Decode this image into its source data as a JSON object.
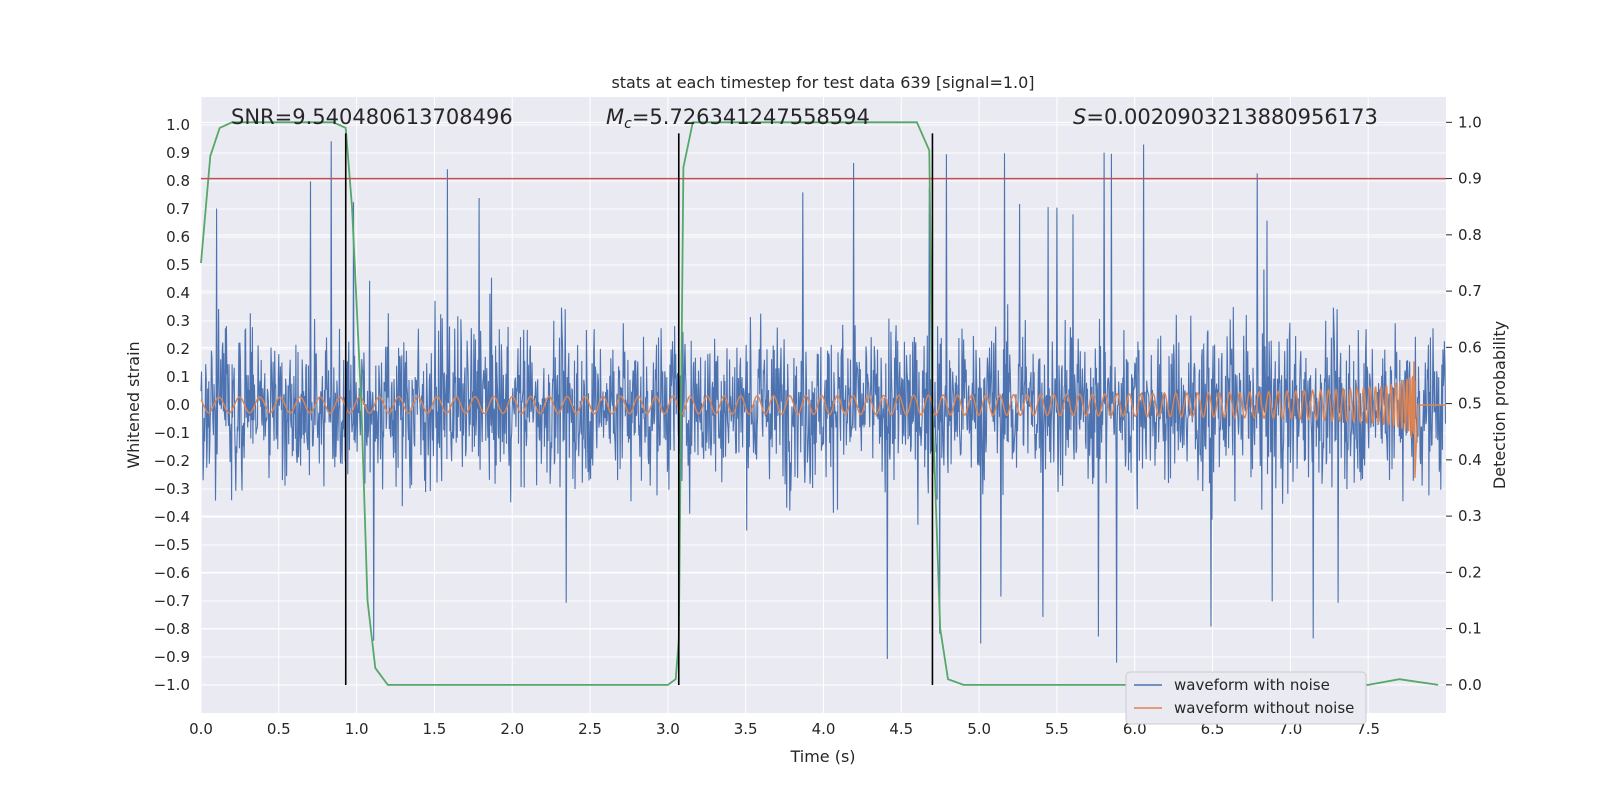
{
  "chart_data": {
    "type": "line",
    "title": "stats at each timestep for test data 639 [signal=1.0]",
    "xlabel": "Time (s)",
    "ylabel": "Whitened strain",
    "ylabel_right": "Detection probability",
    "xlim": [
      0.0,
      8.0
    ],
    "ylim": [
      -1.1,
      1.1
    ],
    "ylim_right": [
      -0.05,
      1.045
    ],
    "xticks": [
      "0.0",
      "0.5",
      "1.0",
      "1.5",
      "2.0",
      "2.5",
      "3.0",
      "3.5",
      "4.0",
      "4.5",
      "5.0",
      "5.5",
      "6.0",
      "6.5",
      "7.0",
      "7.5"
    ],
    "yticks": [
      "1.0",
      "0.9",
      "0.8",
      "0.7",
      "0.6",
      "0.5",
      "0.4",
      "0.3",
      "0.2",
      "0.1",
      "0.0",
      "−0.1",
      "−0.2",
      "−0.3",
      "−0.4",
      "−0.5",
      "−0.6",
      "−0.7",
      "−0.8",
      "−0.9",
      "−1.0"
    ],
    "yticks_right": [
      "1.0",
      "0.9",
      "0.8",
      "0.7",
      "0.6",
      "0.5",
      "0.4",
      "0.3",
      "0.2",
      "0.1",
      "0.0"
    ],
    "annotations": {
      "snr": "SNR=9.540480613708496",
      "mc_symbol": "M",
      "mc_sub": "c",
      "mc_value": "=5.726341247558594",
      "s_symbol": "S",
      "s_value": "=0.0020903213880956173"
    },
    "threshold_right": 0.9,
    "vertical_lines_x": [
      0.93,
      3.07,
      4.7
    ],
    "vertical_line_range": [
      -1.0,
      0.97
    ],
    "legend": [
      {
        "label": "waveform with noise",
        "color": "#4c72b0"
      },
      {
        "label": "waveform without noise",
        "color": "#dd8452"
      }
    ],
    "series": [
      {
        "name": "waveform with noise",
        "color": "#4c72b0",
        "desc": "dense noisy whitened strain, sampled, amplitude ~±0.5 with spikes"
      },
      {
        "name": "waveform without noise",
        "color": "#dd8452",
        "desc": "chirp with growing amplitude, ending near t=7.8"
      },
      {
        "name": "detection probability",
        "color": "#55a868",
        "axis": "right",
        "x": [
          0.0,
          0.06,
          0.12,
          0.2,
          0.3,
          0.5,
          0.7,
          0.85,
          0.93,
          0.97,
          1.03,
          1.07,
          1.12,
          1.2,
          1.3,
          1.6,
          2.0,
          2.5,
          3.0,
          3.05,
          3.07,
          3.1,
          3.16,
          3.3,
          3.6,
          4.0,
          4.3,
          4.6,
          4.68,
          4.7,
          4.75,
          4.8,
          4.9,
          5.5,
          6.0,
          6.5,
          7.0,
          7.5,
          7.7,
          7.95
        ],
        "y": [
          0.75,
          0.94,
          0.99,
          1.0,
          1.0,
          1.0,
          1.0,
          1.0,
          0.99,
          0.85,
          0.5,
          0.15,
          0.03,
          0.0,
          0.0,
          0.0,
          0.0,
          0.0,
          0.0,
          0.01,
          0.08,
          0.92,
          1.0,
          1.0,
          1.0,
          1.0,
          1.0,
          1.0,
          0.95,
          0.5,
          0.1,
          0.01,
          0.0,
          0.0,
          0.0,
          0.0,
          0.0,
          0.0,
          0.01,
          0.0
        ]
      }
    ],
    "colors": {
      "background": "#eaeaf2",
      "grid": "#ffffff",
      "threshold": "#c44e52",
      "vline": "#000000"
    }
  }
}
